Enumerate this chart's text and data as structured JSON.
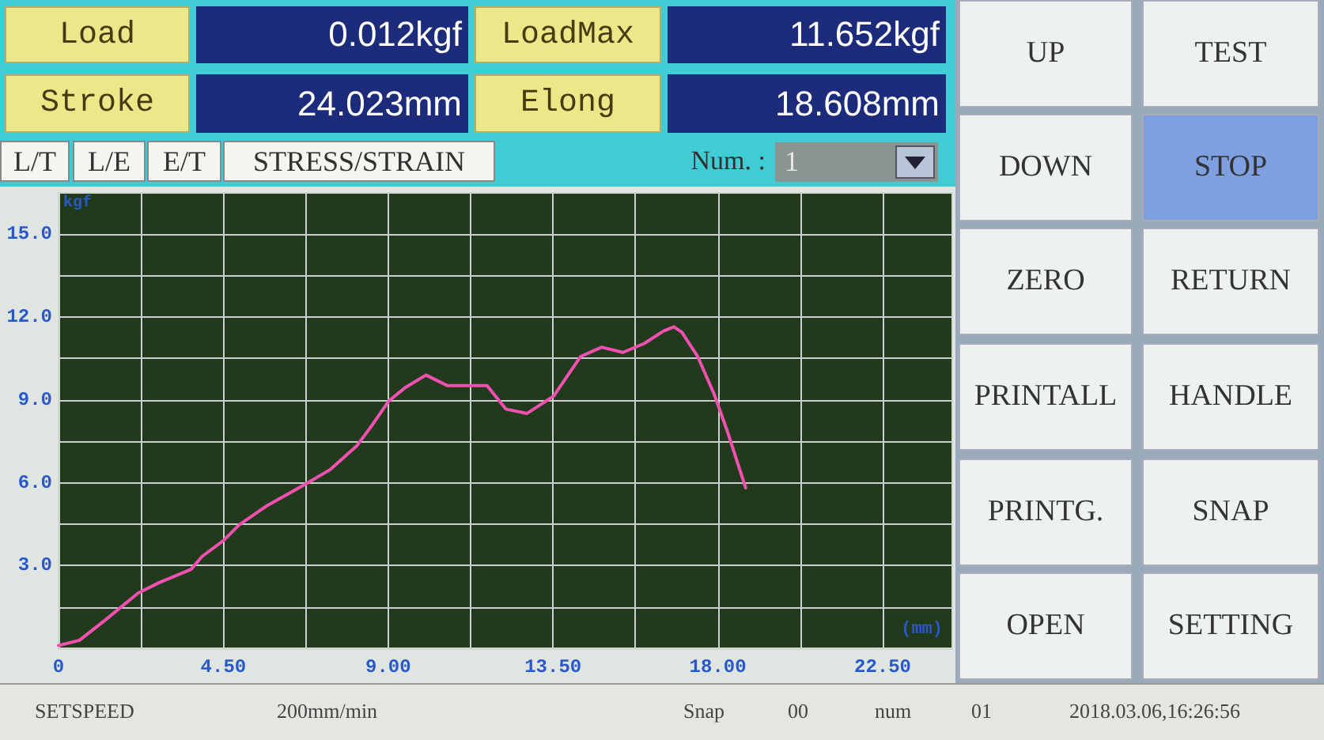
{
  "chart_data": {
    "type": "line",
    "xlabel": "(mm)",
    "ylabel": "kgf",
    "x": [
      0,
      0.57,
      1.3,
      2.17,
      2.75,
      3.62,
      3.92,
      4.5,
      4.93,
      5.66,
      6.68,
      7.41,
      8.14,
      8.57,
      9.01,
      9.45,
      10.03,
      10.61,
      11.19,
      11.7,
      12.21,
      12.79,
      13.52,
      14.25,
      14.83,
      15.41,
      16.0,
      16.51,
      16.8,
      17.02,
      17.45,
      17.89,
      18.25,
      18.76
    ],
    "series": [
      {
        "color": "#f050b0",
        "values": [
          0.1,
          0.29,
          1.05,
          2.0,
          2.38,
          2.86,
          3.33,
          3.9,
          4.47,
          5.14,
          5.9,
          6.47,
          7.33,
          8.1,
          8.95,
          9.43,
          9.9,
          9.52,
          9.52,
          9.52,
          8.67,
          8.51,
          9.14,
          10.57,
          10.91,
          10.72,
          11.05,
          11.49,
          11.65,
          11.45,
          10.57,
          9.24,
          7.9,
          5.81
        ]
      }
    ],
    "xlim": [
      0,
      24.4
    ],
    "ylim": [
      0,
      16.5
    ],
    "xticks": [
      0,
      {
        "value": 2.25,
        "label": null
      },
      {
        "value": 4.5,
        "label": "4.50"
      },
      {
        "value": 6.75,
        "label": null
      },
      {
        "value": 9,
        "label": "9.00"
      },
      {
        "value": 11.25,
        "label": null
      },
      {
        "value": 13.5,
        "label": "13.50"
      },
      {
        "value": 15.75,
        "label": null
      },
      {
        "value": 18,
        "label": "18.00"
      },
      {
        "value": 20.25,
        "label": null
      },
      {
        "value": 22.5,
        "label": "22.50"
      }
    ],
    "yticks": [
      {
        "value": 0,
        "label": null
      },
      {
        "value": 1.5,
        "label": null
      },
      {
        "value": 3,
        "label": "3.0"
      },
      {
        "value": 4.5,
        "label": null
      },
      {
        "value": 6,
        "label": "6.0"
      },
      {
        "value": 7.5,
        "label": null
      },
      {
        "value": 9,
        "label": "9.0"
      },
      {
        "value": 10.5,
        "label": null
      },
      {
        "value": 12,
        "label": "12.0"
      },
      {
        "value": 13.5,
        "label": null
      },
      {
        "value": 15,
        "label": "15.0"
      }
    ],
    "grid": true,
    "marker": "none",
    "line_style": "solid",
    "annotations": [
      "Load",
      "0.012kgf",
      "LoadMax",
      "11.652kgf",
      "Stroke",
      "24.023mm",
      "Elong",
      "18.608mm",
      "L/T",
      "L/E",
      "E/T",
      "STRESS/STRAIN",
      "Num. :",
      "1",
      "UP",
      "TEST",
      "DOWN",
      "STOP",
      "ZERO",
      "RETURN",
      "PRINTALL",
      "HANDLE",
      "PRINTG.",
      "SNAP",
      "OPEN",
      "SETTING",
      "SETSPEED",
      "200mm/min",
      "Snap",
      "00",
      "num",
      "01",
      "2018.03.06,16:26:56"
    ]
  }
}
